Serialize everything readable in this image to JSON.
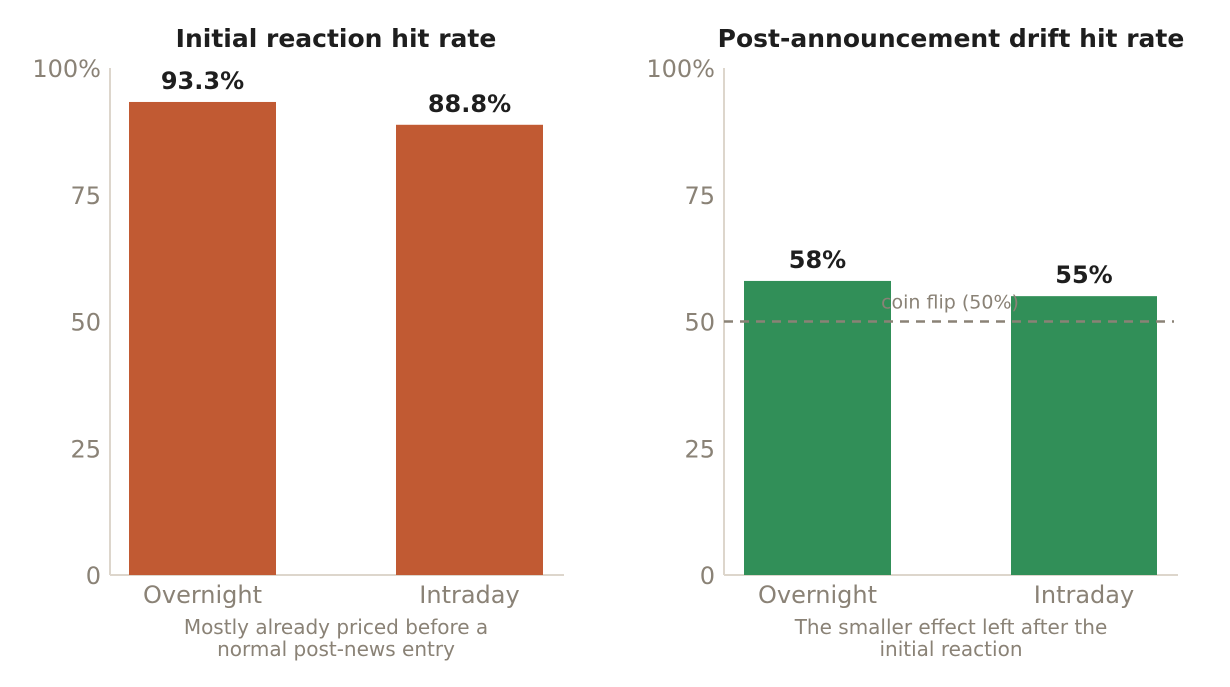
{
  "chart_data": [
    {
      "type": "bar",
      "title": "Initial reaction hit rate",
      "categories": [
        "Overnight",
        "Intraday"
      ],
      "values": [
        93.3,
        88.8
      ],
      "data_labels": [
        "93.3%",
        "88.8%"
      ],
      "xlabel_lines": [
        "Mostly already priced before a",
        "normal post-news entry"
      ],
      "ylabel": "",
      "ylim": [
        0,
        100
      ],
      "yticks": [
        0,
        25,
        50,
        75,
        100
      ],
      "ytick_labels": [
        "0",
        "25",
        "50",
        "75",
        "100%"
      ],
      "bar_color": "#c15a33",
      "grid": false
    },
    {
      "type": "bar",
      "title": "Post-announcement drift hit rate",
      "categories": [
        "Overnight",
        "Intraday"
      ],
      "values": [
        58,
        55
      ],
      "data_labels": [
        "58%",
        "55%"
      ],
      "xlabel_lines": [
        "The smaller effect left after the",
        "initial reaction"
      ],
      "ylabel": "",
      "ylim": [
        0,
        100
      ],
      "yticks": [
        0,
        25,
        50,
        75,
        100
      ],
      "ytick_labels": [
        "0",
        "25",
        "50",
        "75",
        "100%"
      ],
      "bar_color": "#318f58",
      "grid": false,
      "reference_line": {
        "value": 50,
        "label": "coin flip (50%)",
        "color": "#8a8276"
      }
    }
  ],
  "colors": {
    "axis": "#ddd6cc",
    "text_muted": "#8a8276",
    "text_dark": "#1e1e1e"
  }
}
